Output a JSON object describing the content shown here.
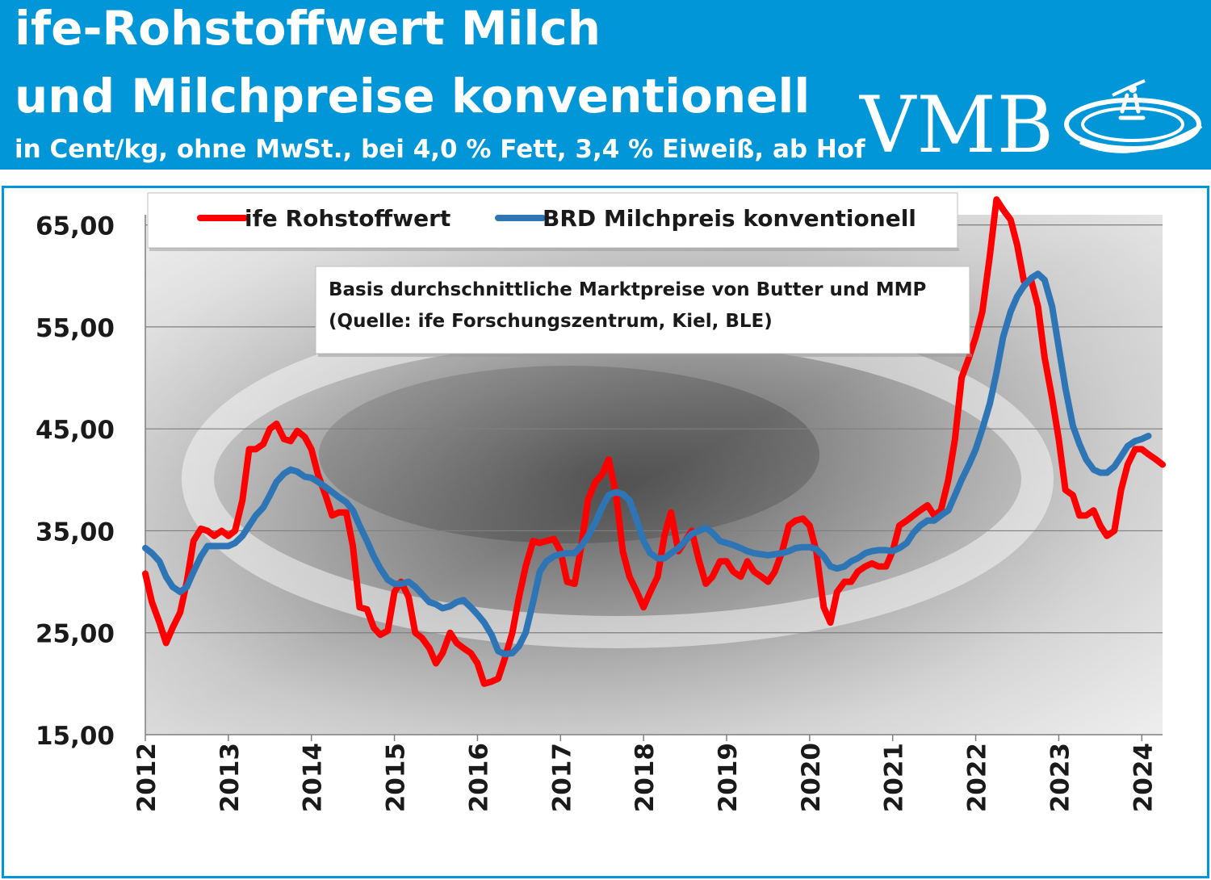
{
  "header": {
    "title_line1": "ife-Rohstoffwert Milch",
    "title_line2": "und Milchpreise konventionell",
    "subtitle": "in Cent/kg, ohne MwSt., bei 4,0 % Fett, 3,4 % Eiweiß, ab Hof",
    "logo_text": "VMB",
    "background_color": "#0096d8"
  },
  "chart_data": {
    "type": "line",
    "annotation": [
      "Basis durchschnittliche Marktpreise von Butter und MMP",
      "(Quelle: ife Forschungszentrum, Kiel, BLE)"
    ],
    "xlabel": "",
    "ylabel": "",
    "ylim": [
      15,
      66
    ],
    "yticks": [
      15,
      25,
      35,
      45,
      55,
      65
    ],
    "ytick_labels": [
      "15,00",
      "25,00",
      "35,00",
      "45,00",
      "55,00",
      "65,00"
    ],
    "xlim": [
      2012.0,
      2024.25
    ],
    "xticks": [
      2012,
      2013,
      2014,
      2015,
      2016,
      2017,
      2018,
      2019,
      2020,
      2021,
      2022,
      2023,
      2024
    ],
    "xtick_labels": [
      "2012",
      "2013",
      "2014",
      "2015",
      "2016",
      "2017",
      "2018",
      "2019",
      "2020",
      "2021",
      "2022",
      "2023",
      "2024"
    ],
    "grid": "horizontal",
    "legend_position": "top",
    "series": [
      {
        "name": "ife Rohstoffwert",
        "color": "#ff0000",
        "points": [
          [
            2012.0,
            30.8
          ],
          [
            2012.08,
            28.0
          ],
          [
            2012.17,
            26.0
          ],
          [
            2012.25,
            24.0
          ],
          [
            2012.33,
            25.5
          ],
          [
            2012.42,
            27.0
          ],
          [
            2012.5,
            30.0
          ],
          [
            2012.58,
            34.0
          ],
          [
            2012.67,
            35.2
          ],
          [
            2012.75,
            35.0
          ],
          [
            2012.83,
            34.5
          ],
          [
            2012.92,
            35.0
          ],
          [
            2013.0,
            34.5
          ],
          [
            2013.08,
            35.0
          ],
          [
            2013.17,
            38.0
          ],
          [
            2013.25,
            43.0
          ],
          [
            2013.33,
            43.0
          ],
          [
            2013.42,
            43.5
          ],
          [
            2013.5,
            45.0
          ],
          [
            2013.58,
            45.5
          ],
          [
            2013.67,
            44.0
          ],
          [
            2013.75,
            43.8
          ],
          [
            2013.83,
            44.8
          ],
          [
            2013.92,
            44.2
          ],
          [
            2014.0,
            43.0
          ],
          [
            2014.08,
            40.5
          ],
          [
            2014.17,
            38.5
          ],
          [
            2014.25,
            36.5
          ],
          [
            2014.33,
            36.8
          ],
          [
            2014.42,
            36.8
          ],
          [
            2014.5,
            33.5
          ],
          [
            2014.58,
            27.5
          ],
          [
            2014.67,
            27.3
          ],
          [
            2014.75,
            25.5
          ],
          [
            2014.83,
            24.8
          ],
          [
            2014.92,
            25.2
          ],
          [
            2015.0,
            29.0
          ],
          [
            2015.08,
            30.0
          ],
          [
            2015.17,
            28.5
          ],
          [
            2015.25,
            25.0
          ],
          [
            2015.33,
            24.5
          ],
          [
            2015.42,
            23.5
          ],
          [
            2015.5,
            22.0
          ],
          [
            2015.58,
            23.0
          ],
          [
            2015.67,
            25.0
          ],
          [
            2015.75,
            24.0
          ],
          [
            2015.83,
            23.5
          ],
          [
            2015.92,
            23.0
          ],
          [
            2016.0,
            22.0
          ],
          [
            2016.08,
            20.0
          ],
          [
            2016.17,
            20.2
          ],
          [
            2016.25,
            20.5
          ],
          [
            2016.33,
            22.5
          ],
          [
            2016.42,
            25.0
          ],
          [
            2016.5,
            28.5
          ],
          [
            2016.58,
            31.5
          ],
          [
            2016.67,
            34.0
          ],
          [
            2016.75,
            33.8
          ],
          [
            2016.83,
            34.0
          ],
          [
            2016.92,
            34.2
          ],
          [
            2017.0,
            33.0
          ],
          [
            2017.08,
            30.0
          ],
          [
            2017.17,
            29.8
          ],
          [
            2017.25,
            33.5
          ],
          [
            2017.33,
            38.0
          ],
          [
            2017.42,
            39.8
          ],
          [
            2017.5,
            40.5
          ],
          [
            2017.58,
            42.0
          ],
          [
            2017.67,
            38.5
          ],
          [
            2017.75,
            33.0
          ],
          [
            2017.83,
            30.5
          ],
          [
            2017.92,
            29.0
          ],
          [
            2018.0,
            27.5
          ],
          [
            2018.08,
            29.0
          ],
          [
            2018.17,
            30.5
          ],
          [
            2018.25,
            34.5
          ],
          [
            2018.33,
            36.8
          ],
          [
            2018.42,
            33.0
          ],
          [
            2018.5,
            34.0
          ],
          [
            2018.58,
            35.0
          ],
          [
            2018.67,
            32.0
          ],
          [
            2018.75,
            29.8
          ],
          [
            2018.83,
            30.5
          ],
          [
            2018.92,
            32.0
          ],
          [
            2019.0,
            32.0
          ],
          [
            2019.08,
            31.0
          ],
          [
            2019.17,
            30.5
          ],
          [
            2019.25,
            32.0
          ],
          [
            2019.33,
            31.0
          ],
          [
            2019.42,
            30.5
          ],
          [
            2019.5,
            30.0
          ],
          [
            2019.58,
            31.0
          ],
          [
            2019.67,
            33.0
          ],
          [
            2019.75,
            35.5
          ],
          [
            2019.83,
            36.0
          ],
          [
            2019.92,
            36.2
          ],
          [
            2020.0,
            35.5
          ],
          [
            2020.08,
            33.0
          ],
          [
            2020.17,
            27.5
          ],
          [
            2020.25,
            26.0
          ],
          [
            2020.33,
            29.0
          ],
          [
            2020.42,
            30.0
          ],
          [
            2020.5,
            30.0
          ],
          [
            2020.58,
            31.0
          ],
          [
            2020.67,
            31.5
          ],
          [
            2020.75,
            31.8
          ],
          [
            2020.83,
            31.5
          ],
          [
            2020.92,
            31.5
          ],
          [
            2021.0,
            33.0
          ],
          [
            2021.08,
            35.5
          ],
          [
            2021.17,
            36.0
          ],
          [
            2021.25,
            36.5
          ],
          [
            2021.33,
            37.0
          ],
          [
            2021.42,
            37.5
          ],
          [
            2021.5,
            36.5
          ],
          [
            2021.58,
            37.0
          ],
          [
            2021.67,
            40.0
          ],
          [
            2021.75,
            44.0
          ],
          [
            2021.83,
            50.0
          ],
          [
            2021.92,
            52.0
          ],
          [
            2022.0,
            54.0
          ],
          [
            2022.08,
            56.5
          ],
          [
            2022.17,
            62.0
          ],
          [
            2022.25,
            67.5
          ],
          [
            2022.33,
            66.5
          ],
          [
            2022.42,
            65.5
          ],
          [
            2022.5,
            63.0
          ],
          [
            2022.58,
            59.5
          ],
          [
            2022.67,
            59.5
          ],
          [
            2022.75,
            57.0
          ],
          [
            2022.83,
            52.0
          ],
          [
            2022.92,
            48.0
          ],
          [
            2023.0,
            44.0
          ],
          [
            2023.08,
            39.0
          ],
          [
            2023.17,
            38.5
          ],
          [
            2023.25,
            36.5
          ],
          [
            2023.33,
            36.5
          ],
          [
            2023.42,
            37.0
          ],
          [
            2023.5,
            35.5
          ],
          [
            2023.58,
            34.5
          ],
          [
            2023.67,
            35.0
          ],
          [
            2023.75,
            39.0
          ],
          [
            2023.83,
            41.5
          ],
          [
            2023.92,
            43.0
          ],
          [
            2024.0,
            43.0
          ],
          [
            2024.08,
            42.5
          ],
          [
            2024.17,
            42.0
          ],
          [
            2024.25,
            41.5
          ]
        ]
      },
      {
        "name": "BRD Milchpreis konventionell",
        "color": "#2e75b6",
        "points": [
          [
            2012.0,
            33.3
          ],
          [
            2012.08,
            32.8
          ],
          [
            2012.17,
            32.0
          ],
          [
            2012.25,
            30.5
          ],
          [
            2012.33,
            29.5
          ],
          [
            2012.42,
            29.0
          ],
          [
            2012.5,
            29.5
          ],
          [
            2012.58,
            31.0
          ],
          [
            2012.67,
            32.5
          ],
          [
            2012.75,
            33.5
          ],
          [
            2012.83,
            33.5
          ],
          [
            2012.92,
            33.5
          ],
          [
            2013.0,
            33.5
          ],
          [
            2013.08,
            33.8
          ],
          [
            2013.17,
            34.5
          ],
          [
            2013.25,
            35.5
          ],
          [
            2013.33,
            36.5
          ],
          [
            2013.42,
            37.3
          ],
          [
            2013.5,
            38.5
          ],
          [
            2013.58,
            39.8
          ],
          [
            2013.67,
            40.6
          ],
          [
            2013.75,
            41.0
          ],
          [
            2013.83,
            40.8
          ],
          [
            2013.92,
            40.3
          ],
          [
            2014.0,
            40.2
          ],
          [
            2014.08,
            39.8
          ],
          [
            2014.17,
            39.3
          ],
          [
            2014.25,
            38.8
          ],
          [
            2014.33,
            38.3
          ],
          [
            2014.42,
            37.8
          ],
          [
            2014.5,
            37.0
          ],
          [
            2014.58,
            35.5
          ],
          [
            2014.67,
            34.0
          ],
          [
            2014.75,
            32.5
          ],
          [
            2014.83,
            31.3
          ],
          [
            2014.92,
            30.2
          ],
          [
            2015.0,
            29.8
          ],
          [
            2015.08,
            29.8
          ],
          [
            2015.17,
            30.0
          ],
          [
            2015.25,
            29.5
          ],
          [
            2015.33,
            28.8
          ],
          [
            2015.42,
            28.0
          ],
          [
            2015.5,
            27.8
          ],
          [
            2015.58,
            27.4
          ],
          [
            2015.67,
            27.6
          ],
          [
            2015.75,
            28.0
          ],
          [
            2015.83,
            28.2
          ],
          [
            2015.92,
            27.5
          ],
          [
            2016.0,
            26.8
          ],
          [
            2016.08,
            26.0
          ],
          [
            2016.17,
            24.8
          ],
          [
            2016.25,
            23.2
          ],
          [
            2016.33,
            22.9
          ],
          [
            2016.42,
            23.0
          ],
          [
            2016.5,
            23.7
          ],
          [
            2016.58,
            25.0
          ],
          [
            2016.67,
            28.0
          ],
          [
            2016.75,
            31.0
          ],
          [
            2016.83,
            32.0
          ],
          [
            2016.92,
            32.5
          ],
          [
            2017.0,
            32.7
          ],
          [
            2017.08,
            32.8
          ],
          [
            2017.17,
            32.8
          ],
          [
            2017.25,
            33.5
          ],
          [
            2017.33,
            34.5
          ],
          [
            2017.42,
            35.8
          ],
          [
            2017.5,
            37.3
          ],
          [
            2017.58,
            38.5
          ],
          [
            2017.67,
            38.8
          ],
          [
            2017.75,
            38.6
          ],
          [
            2017.83,
            38.0
          ],
          [
            2017.92,
            36.0
          ],
          [
            2018.0,
            34.0
          ],
          [
            2018.08,
            32.8
          ],
          [
            2018.17,
            32.3
          ],
          [
            2018.25,
            32.3
          ],
          [
            2018.33,
            32.8
          ],
          [
            2018.42,
            33.3
          ],
          [
            2018.5,
            34.0
          ],
          [
            2018.58,
            34.7
          ],
          [
            2018.67,
            35.0
          ],
          [
            2018.75,
            35.3
          ],
          [
            2018.83,
            34.8
          ],
          [
            2018.92,
            34.0
          ],
          [
            2019.0,
            33.8
          ],
          [
            2019.08,
            33.6
          ],
          [
            2019.17,
            33.3
          ],
          [
            2019.25,
            33.0
          ],
          [
            2019.33,
            32.8
          ],
          [
            2019.42,
            32.7
          ],
          [
            2019.5,
            32.6
          ],
          [
            2019.58,
            32.7
          ],
          [
            2019.67,
            32.8
          ],
          [
            2019.75,
            33.0
          ],
          [
            2019.83,
            33.3
          ],
          [
            2019.92,
            33.4
          ],
          [
            2020.0,
            33.4
          ],
          [
            2020.08,
            33.2
          ],
          [
            2020.17,
            32.5
          ],
          [
            2020.25,
            31.5
          ],
          [
            2020.33,
            31.3
          ],
          [
            2020.42,
            31.5
          ],
          [
            2020.5,
            32.0
          ],
          [
            2020.58,
            32.3
          ],
          [
            2020.67,
            32.8
          ],
          [
            2020.75,
            33.0
          ],
          [
            2020.83,
            33.1
          ],
          [
            2020.92,
            33.1
          ],
          [
            2021.0,
            33.0
          ],
          [
            2021.08,
            33.3
          ],
          [
            2021.17,
            33.8
          ],
          [
            2021.25,
            34.8
          ],
          [
            2021.33,
            35.5
          ],
          [
            2021.42,
            36.0
          ],
          [
            2021.5,
            36.0
          ],
          [
            2021.58,
            36.5
          ],
          [
            2021.67,
            37.0
          ],
          [
            2021.75,
            38.5
          ],
          [
            2021.83,
            40.0
          ],
          [
            2021.92,
            41.5
          ],
          [
            2022.0,
            43.0
          ],
          [
            2022.08,
            45.0
          ],
          [
            2022.17,
            47.5
          ],
          [
            2022.25,
            50.5
          ],
          [
            2022.33,
            54.0
          ],
          [
            2022.42,
            56.5
          ],
          [
            2022.5,
            58.0
          ],
          [
            2022.58,
            59.0
          ],
          [
            2022.67,
            59.8
          ],
          [
            2022.75,
            60.2
          ],
          [
            2022.83,
            59.6
          ],
          [
            2022.92,
            57.0
          ],
          [
            2023.0,
            53.0
          ],
          [
            2023.08,
            49.0
          ],
          [
            2023.17,
            45.3
          ],
          [
            2023.25,
            43.5
          ],
          [
            2023.33,
            42.0
          ],
          [
            2023.42,
            41.0
          ],
          [
            2023.5,
            40.7
          ],
          [
            2023.58,
            40.7
          ],
          [
            2023.67,
            41.3
          ],
          [
            2023.75,
            42.3
          ],
          [
            2023.83,
            43.3
          ],
          [
            2023.92,
            43.8
          ],
          [
            2024.0,
            44.0
          ],
          [
            2024.08,
            44.3
          ]
        ]
      }
    ]
  }
}
